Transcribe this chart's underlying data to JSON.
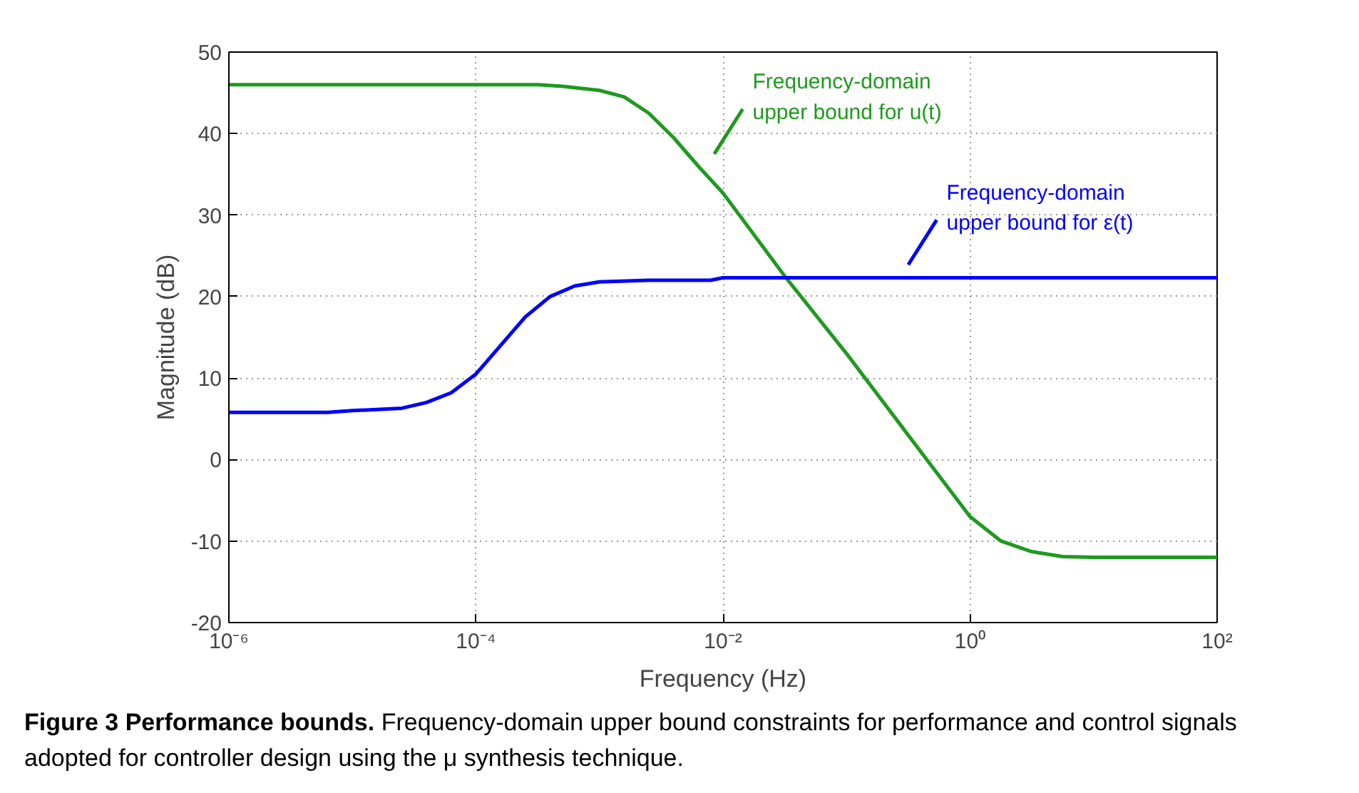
{
  "chart_data": {
    "type": "line",
    "title": "Figure 3 Performance bounds.",
    "xlabel": "Frequency (Hz)",
    "ylabel": "Magnitude (dB)",
    "log": "x",
    "xlim": [
      1e-06,
      100
    ],
    "xticks": [
      {
        "value": 1e-06,
        "label": "10⁻⁶"
      },
      {
        "value": 0.0001,
        "label": "10⁻⁴"
      },
      {
        "value": 0.01,
        "label": "10⁻²"
      },
      {
        "value": 1,
        "label": "10⁰"
      },
      {
        "value": 100,
        "label": "10²"
      }
    ],
    "ylim": [
      -20,
      50
    ],
    "yticks": [
      -20,
      -10,
      0,
      10,
      20,
      30,
      40,
      50
    ],
    "grid": true,
    "line_style": "solid",
    "series": [
      {
        "name": "Frequency-domain upper bound for u(t)",
        "color": "#1e9a1e",
        "x": [
          1e-06,
          0.0001,
          0.000316,
          0.000501,
          0.001,
          0.001585,
          0.00251,
          0.00398,
          0.00631,
          0.01,
          0.0316,
          0.1,
          0.316,
          1,
          1.78,
          3.16,
          5.62,
          10,
          100
        ],
        "values": [
          46,
          46,
          46,
          45.8,
          45.3,
          44.5,
          42.5,
          39.5,
          36,
          32.7,
          22.5,
          13,
          3,
          -7,
          -10,
          -11.3,
          -11.9,
          -12,
          -12
        ]
      },
      {
        "name": "Frequency-domain upper bound for ε(t)",
        "color": "#0000ff",
        "x": [
          1e-06,
          6.31e-06,
          1e-05,
          2.51e-05,
          3.98e-05,
          6.31e-05,
          0.0001,
          0.0001585,
          0.000251,
          0.000398,
          0.000631,
          0.001,
          0.00251,
          0.00794,
          0.01,
          100
        ],
        "values": [
          5.8,
          5.8,
          6,
          6.3,
          7,
          8.2,
          10.5,
          14,
          17.5,
          20,
          21.3,
          21.8,
          22,
          22,
          22.3,
          22.3
        ]
      }
    ],
    "annotations": [
      "Frequency-domain upper bound constraints for performance and control signals adopted for controller design using the μ synthesis technique."
    ]
  }
}
